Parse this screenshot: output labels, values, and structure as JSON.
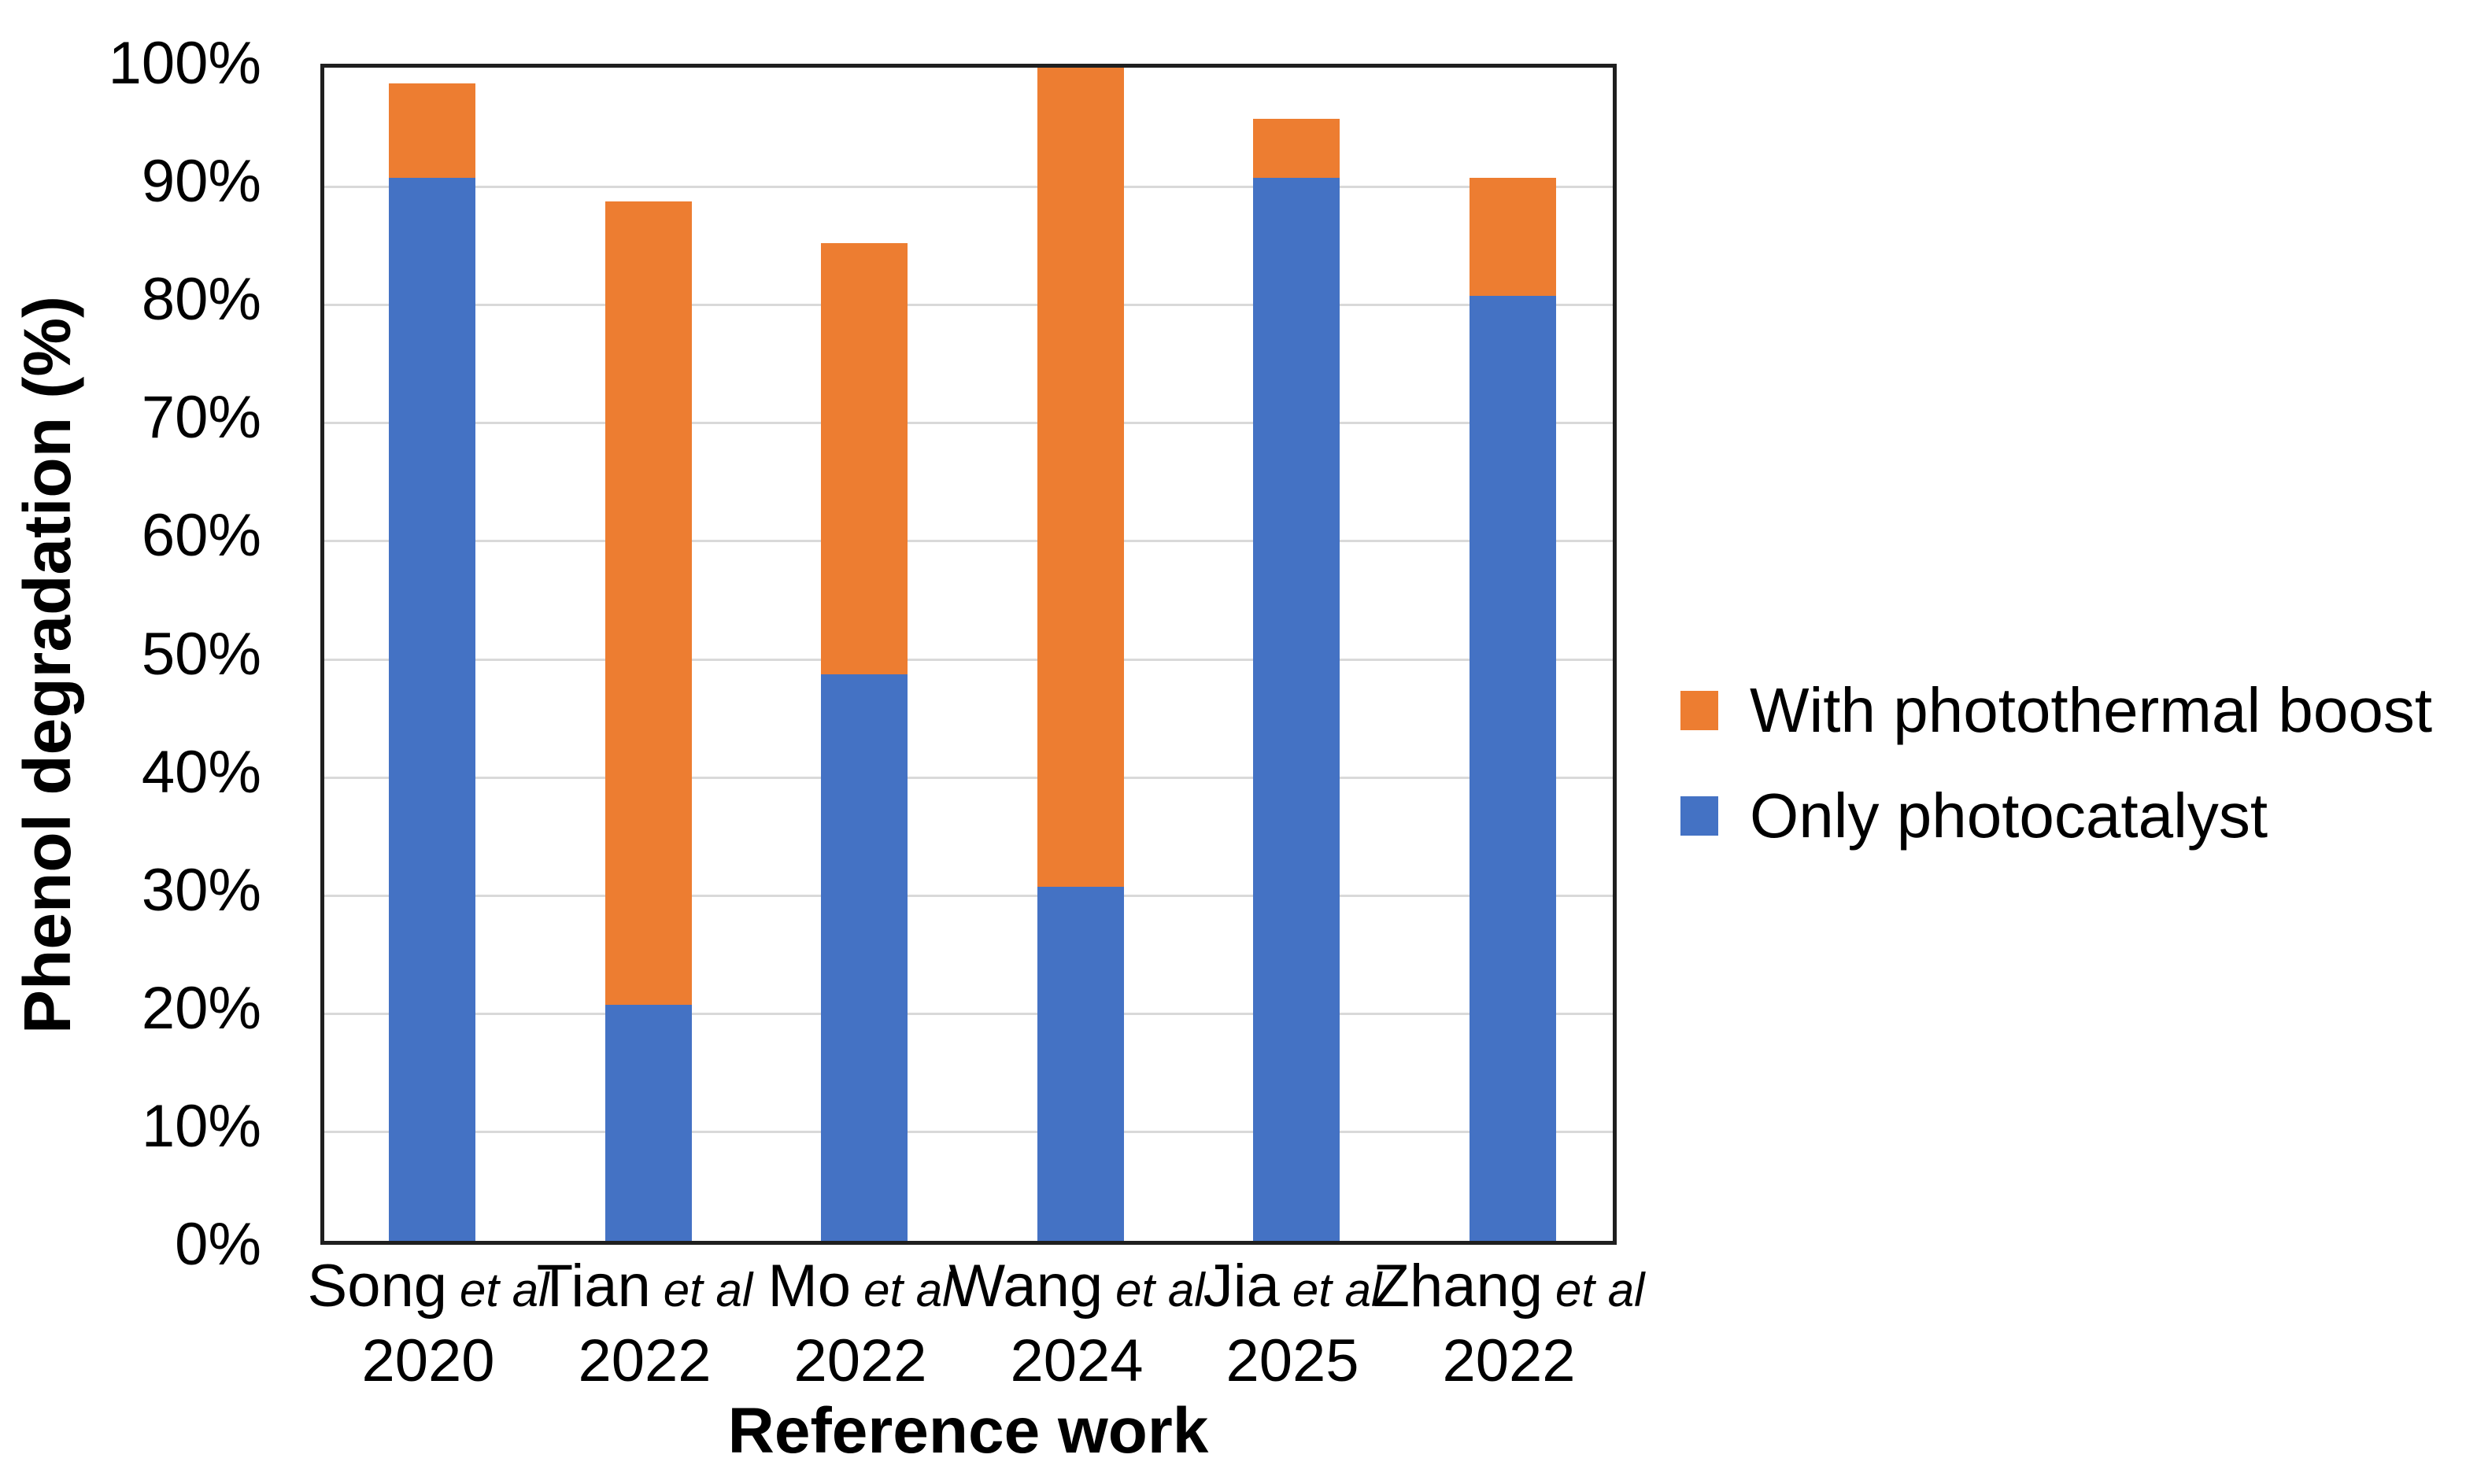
{
  "chart_data": {
    "type": "bar",
    "stacked": true,
    "title": "",
    "xlabel": "Reference work",
    "ylabel": "Phenol degradation (%)",
    "ylim": [
      0,
      100
    ],
    "grid": true,
    "y_tick_labels": [
      "0%",
      "10%",
      "20%",
      "30%",
      "40%",
      "50%",
      "60%",
      "70%",
      "80%",
      "90%",
      "100%"
    ],
    "categories": [
      {
        "name": "Song",
        "suffix": "et al",
        "year": "2020"
      },
      {
        "name": "Tian",
        "suffix": "et al",
        "year": "2022"
      },
      {
        "name": "Mo",
        "suffix": "et al",
        "year": "2022"
      },
      {
        "name": "Wang",
        "suffix": "et al",
        "year": "2024"
      },
      {
        "name": "Jia",
        "suffix": "et al",
        "year": "2025"
      },
      {
        "name": "Zhang",
        "suffix": "et al",
        "year": "2022"
      }
    ],
    "series": [
      {
        "name": "Only photocatalyst",
        "color": "#4472C4",
        "values": [
          90,
          20,
          48,
          30,
          90,
          80
        ]
      },
      {
        "name": "With photothermal boost",
        "color": "#ED7D31",
        "values": [
          8,
          68,
          36.5,
          70,
          5,
          10
        ]
      }
    ],
    "stack_totals": [
      98,
      88,
      84.5,
      100,
      95,
      90
    ],
    "legend": {
      "position": "right",
      "items": [
        {
          "label": "With photothermal boost",
          "color": "#ED7D31"
        },
        {
          "label": "Only photocatalyst",
          "color": "#4472C4"
        }
      ]
    },
    "colors": {
      "gridline": "#D9D9D9",
      "plot_border": "#1F1F1F",
      "text": "#000000"
    }
  }
}
